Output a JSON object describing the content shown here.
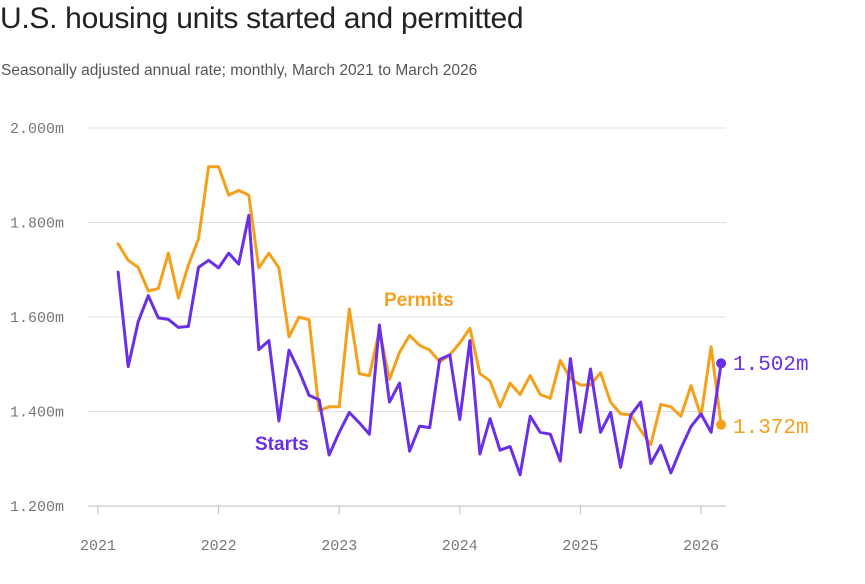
{
  "chart_data": {
    "type": "line",
    "title": "U.S. housing units started and permitted",
    "subtitle": "Seasonally adjusted annual rate; monthly, March 2021 to March 2026",
    "x_start": "2021-03",
    "x_ticks": [
      "2021",
      "2022",
      "2023",
      "2024",
      "2025",
      "2026"
    ],
    "y_ticks": [
      "2.000m",
      "1.800m",
      "1.600m",
      "1.400m",
      "1.200m"
    ],
    "ylim": [
      1.2,
      2.0
    ],
    "grid": true,
    "colors": {
      "starts": "#6a2fe8",
      "permits": "#f5a01a"
    },
    "series": [
      {
        "name": "Starts",
        "end_label": "1.502m",
        "values": [
          1.695,
          1.495,
          1.59,
          1.645,
          1.598,
          1.595,
          1.578,
          1.58,
          1.705,
          1.72,
          1.704,
          1.735,
          1.712,
          1.815,
          1.531,
          1.55,
          1.38,
          1.53,
          1.486,
          1.434,
          1.425,
          1.308,
          1.356,
          1.398,
          1.376,
          1.352,
          1.583,
          1.42,
          1.46,
          1.316,
          1.369,
          1.366,
          1.51,
          1.52,
          1.383,
          1.55,
          1.31,
          1.385,
          1.318,
          1.326,
          1.266,
          1.39,
          1.356,
          1.352,
          1.295,
          1.512,
          1.356,
          1.49,
          1.356,
          1.398,
          1.282,
          1.392,
          1.42,
          1.29,
          1.328,
          1.27,
          1.322,
          1.368,
          1.395,
          1.356,
          1.502
        ]
      },
      {
        "name": "Permits",
        "end_label": "1.372m",
        "values": [
          1.755,
          1.72,
          1.705,
          1.655,
          1.66,
          1.735,
          1.64,
          1.71,
          1.765,
          1.918,
          1.918,
          1.858,
          1.868,
          1.858,
          1.704,
          1.735,
          1.704,
          1.558,
          1.6,
          1.594,
          1.402,
          1.41,
          1.41,
          1.617,
          1.48,
          1.476,
          1.572,
          1.468,
          1.525,
          1.561,
          1.54,
          1.53,
          1.505,
          1.52,
          1.545,
          1.576,
          1.48,
          1.465,
          1.41,
          1.46,
          1.436,
          1.476,
          1.436,
          1.428,
          1.508,
          1.47,
          1.456,
          1.456,
          1.482,
          1.42,
          1.395,
          1.393,
          1.36,
          1.33,
          1.415,
          1.41,
          1.39,
          1.455,
          1.39,
          1.537,
          1.372
        ]
      }
    ]
  }
}
